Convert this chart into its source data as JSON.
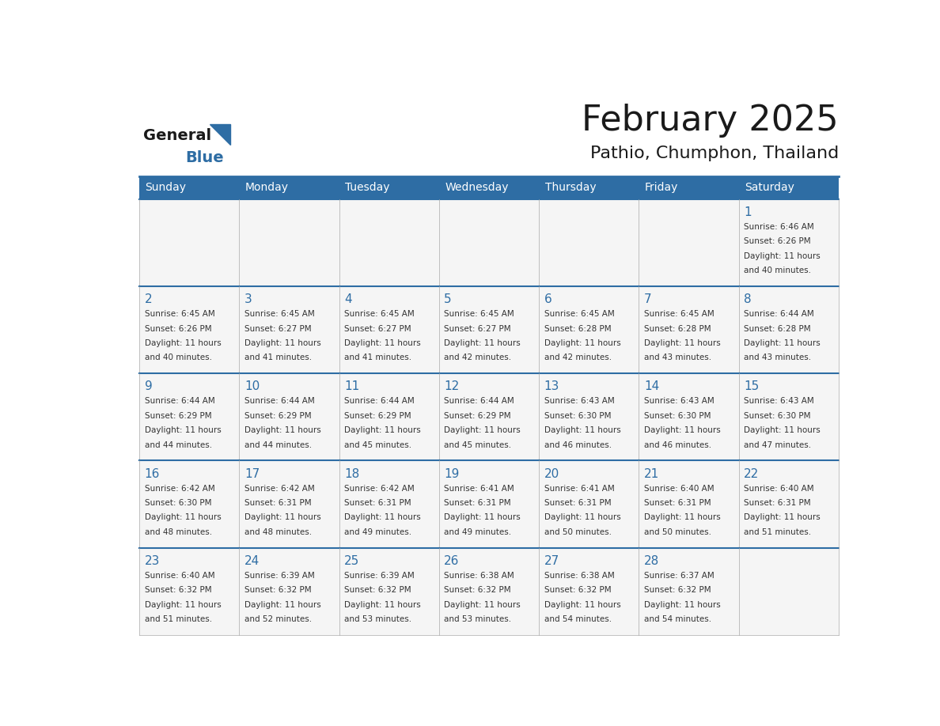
{
  "title": "February 2025",
  "subtitle": "Pathio, Chumphon, Thailand",
  "days_of_week": [
    "Sunday",
    "Monday",
    "Tuesday",
    "Wednesday",
    "Thursday",
    "Friday",
    "Saturday"
  ],
  "header_bg": "#2E6DA4",
  "header_text": "#FFFFFF",
  "cell_bg": "#F5F5F5",
  "day_number_color": "#2E6DA4",
  "info_text_color": "#333333",
  "border_color": "#AAAAAA",
  "title_color": "#1a1a1a",
  "subtitle_color": "#1a1a1a",
  "logo_general_color": "#1a1a1a",
  "logo_blue_color": "#2E6DA4",
  "weeks": [
    [
      null,
      null,
      null,
      null,
      null,
      null,
      1
    ],
    [
      2,
      3,
      4,
      5,
      6,
      7,
      8
    ],
    [
      9,
      10,
      11,
      12,
      13,
      14,
      15
    ],
    [
      16,
      17,
      18,
      19,
      20,
      21,
      22
    ],
    [
      23,
      24,
      25,
      26,
      27,
      28,
      null
    ]
  ],
  "day_data": {
    "1": {
      "sunrise": "6:46 AM",
      "sunset": "6:26 PM",
      "daylight_h": "11 hours",
      "daylight_m": "and 40 minutes."
    },
    "2": {
      "sunrise": "6:45 AM",
      "sunset": "6:26 PM",
      "daylight_h": "11 hours",
      "daylight_m": "and 40 minutes."
    },
    "3": {
      "sunrise": "6:45 AM",
      "sunset": "6:27 PM",
      "daylight_h": "11 hours",
      "daylight_m": "and 41 minutes."
    },
    "4": {
      "sunrise": "6:45 AM",
      "sunset": "6:27 PM",
      "daylight_h": "11 hours",
      "daylight_m": "and 41 minutes."
    },
    "5": {
      "sunrise": "6:45 AM",
      "sunset": "6:27 PM",
      "daylight_h": "11 hours",
      "daylight_m": "and 42 minutes."
    },
    "6": {
      "sunrise": "6:45 AM",
      "sunset": "6:28 PM",
      "daylight_h": "11 hours",
      "daylight_m": "and 42 minutes."
    },
    "7": {
      "sunrise": "6:45 AM",
      "sunset": "6:28 PM",
      "daylight_h": "11 hours",
      "daylight_m": "and 43 minutes."
    },
    "8": {
      "sunrise": "6:44 AM",
      "sunset": "6:28 PM",
      "daylight_h": "11 hours",
      "daylight_m": "and 43 minutes."
    },
    "9": {
      "sunrise": "6:44 AM",
      "sunset": "6:29 PM",
      "daylight_h": "11 hours",
      "daylight_m": "and 44 minutes."
    },
    "10": {
      "sunrise": "6:44 AM",
      "sunset": "6:29 PM",
      "daylight_h": "11 hours",
      "daylight_m": "and 44 minutes."
    },
    "11": {
      "sunrise": "6:44 AM",
      "sunset": "6:29 PM",
      "daylight_h": "11 hours",
      "daylight_m": "and 45 minutes."
    },
    "12": {
      "sunrise": "6:44 AM",
      "sunset": "6:29 PM",
      "daylight_h": "11 hours",
      "daylight_m": "and 45 minutes."
    },
    "13": {
      "sunrise": "6:43 AM",
      "sunset": "6:30 PM",
      "daylight_h": "11 hours",
      "daylight_m": "and 46 minutes."
    },
    "14": {
      "sunrise": "6:43 AM",
      "sunset": "6:30 PM",
      "daylight_h": "11 hours",
      "daylight_m": "and 46 minutes."
    },
    "15": {
      "sunrise": "6:43 AM",
      "sunset": "6:30 PM",
      "daylight_h": "11 hours",
      "daylight_m": "and 47 minutes."
    },
    "16": {
      "sunrise": "6:42 AM",
      "sunset": "6:30 PM",
      "daylight_h": "11 hours",
      "daylight_m": "and 48 minutes."
    },
    "17": {
      "sunrise": "6:42 AM",
      "sunset": "6:31 PM",
      "daylight_h": "11 hours",
      "daylight_m": "and 48 minutes."
    },
    "18": {
      "sunrise": "6:42 AM",
      "sunset": "6:31 PM",
      "daylight_h": "11 hours",
      "daylight_m": "and 49 minutes."
    },
    "19": {
      "sunrise": "6:41 AM",
      "sunset": "6:31 PM",
      "daylight_h": "11 hours",
      "daylight_m": "and 49 minutes."
    },
    "20": {
      "sunrise": "6:41 AM",
      "sunset": "6:31 PM",
      "daylight_h": "11 hours",
      "daylight_m": "and 50 minutes."
    },
    "21": {
      "sunrise": "6:40 AM",
      "sunset": "6:31 PM",
      "daylight_h": "11 hours",
      "daylight_m": "and 50 minutes."
    },
    "22": {
      "sunrise": "6:40 AM",
      "sunset": "6:31 PM",
      "daylight_h": "11 hours",
      "daylight_m": "and 51 minutes."
    },
    "23": {
      "sunrise": "6:40 AM",
      "sunset": "6:32 PM",
      "daylight_h": "11 hours",
      "daylight_m": "and 51 minutes."
    },
    "24": {
      "sunrise": "6:39 AM",
      "sunset": "6:32 PM",
      "daylight_h": "11 hours",
      "daylight_m": "and 52 minutes."
    },
    "25": {
      "sunrise": "6:39 AM",
      "sunset": "6:32 PM",
      "daylight_h": "11 hours",
      "daylight_m": "and 53 minutes."
    },
    "26": {
      "sunrise": "6:38 AM",
      "sunset": "6:32 PM",
      "daylight_h": "11 hours",
      "daylight_m": "and 53 minutes."
    },
    "27": {
      "sunrise": "6:38 AM",
      "sunset": "6:32 PM",
      "daylight_h": "11 hours",
      "daylight_m": "and 54 minutes."
    },
    "28": {
      "sunrise": "6:37 AM",
      "sunset": "6:32 PM",
      "daylight_h": "11 hours",
      "daylight_m": "and 54 minutes."
    }
  }
}
